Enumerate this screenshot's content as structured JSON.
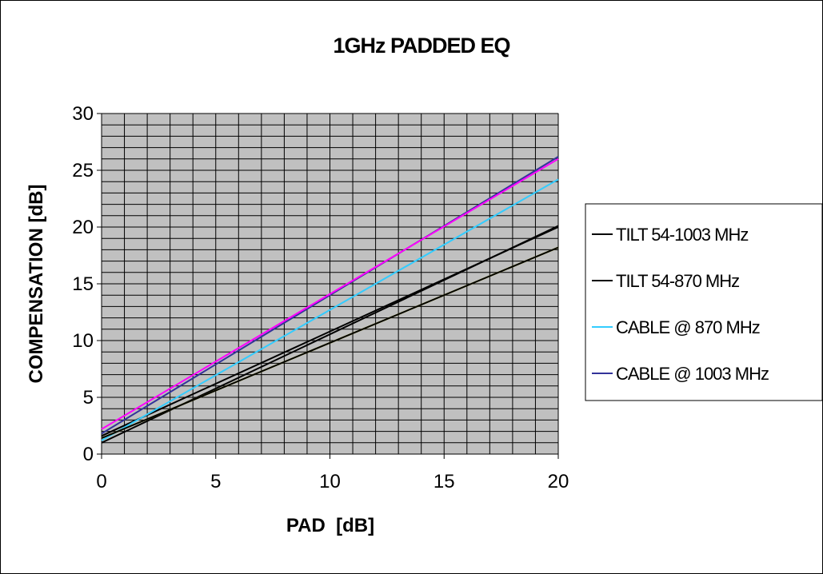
{
  "chart_data": {
    "type": "line",
    "title": "1GHz PADDED EQ",
    "xlabel": "PAD  [dB]",
    "ylabel": "COMPENSATION [dB]",
    "xlim": [
      0,
      20
    ],
    "ylim": [
      0,
      30
    ],
    "xticks": [
      "0",
      "5",
      "10",
      "15",
      "20"
    ],
    "yticks": [
      "0",
      "5",
      "10",
      "15",
      "20",
      "25",
      "30"
    ],
    "grid": true,
    "plot_background": "#c0c0c0",
    "legend_position": "right",
    "x": [
      0,
      20
    ],
    "series": [
      {
        "name": "TILT 54-1003 MHz",
        "color": "#000000",
        "values": [
          1.0,
          20.1
        ]
      },
      {
        "name": "TILT 54-870 MHz",
        "color": "#000000",
        "values": [
          1.6,
          20.0
        ]
      },
      {
        "name": "CABLE  @ 870 MHz",
        "color": "#33ccff",
        "values": [
          1.2,
          24.2
        ]
      },
      {
        "name": "CABLE  @ 1003 MHz",
        "color": "#333399",
        "values": [
          1.8,
          26.2
        ]
      },
      {
        "name": "",
        "color": "#ff00ff",
        "values": [
          2.2,
          26.0
        ]
      },
      {
        "name": "",
        "color": "#ffff00",
        "values": [
          1.4,
          18.2
        ]
      },
      {
        "name": "",
        "color": "#000000",
        "values": [
          1.4,
          18.2
        ]
      }
    ]
  }
}
